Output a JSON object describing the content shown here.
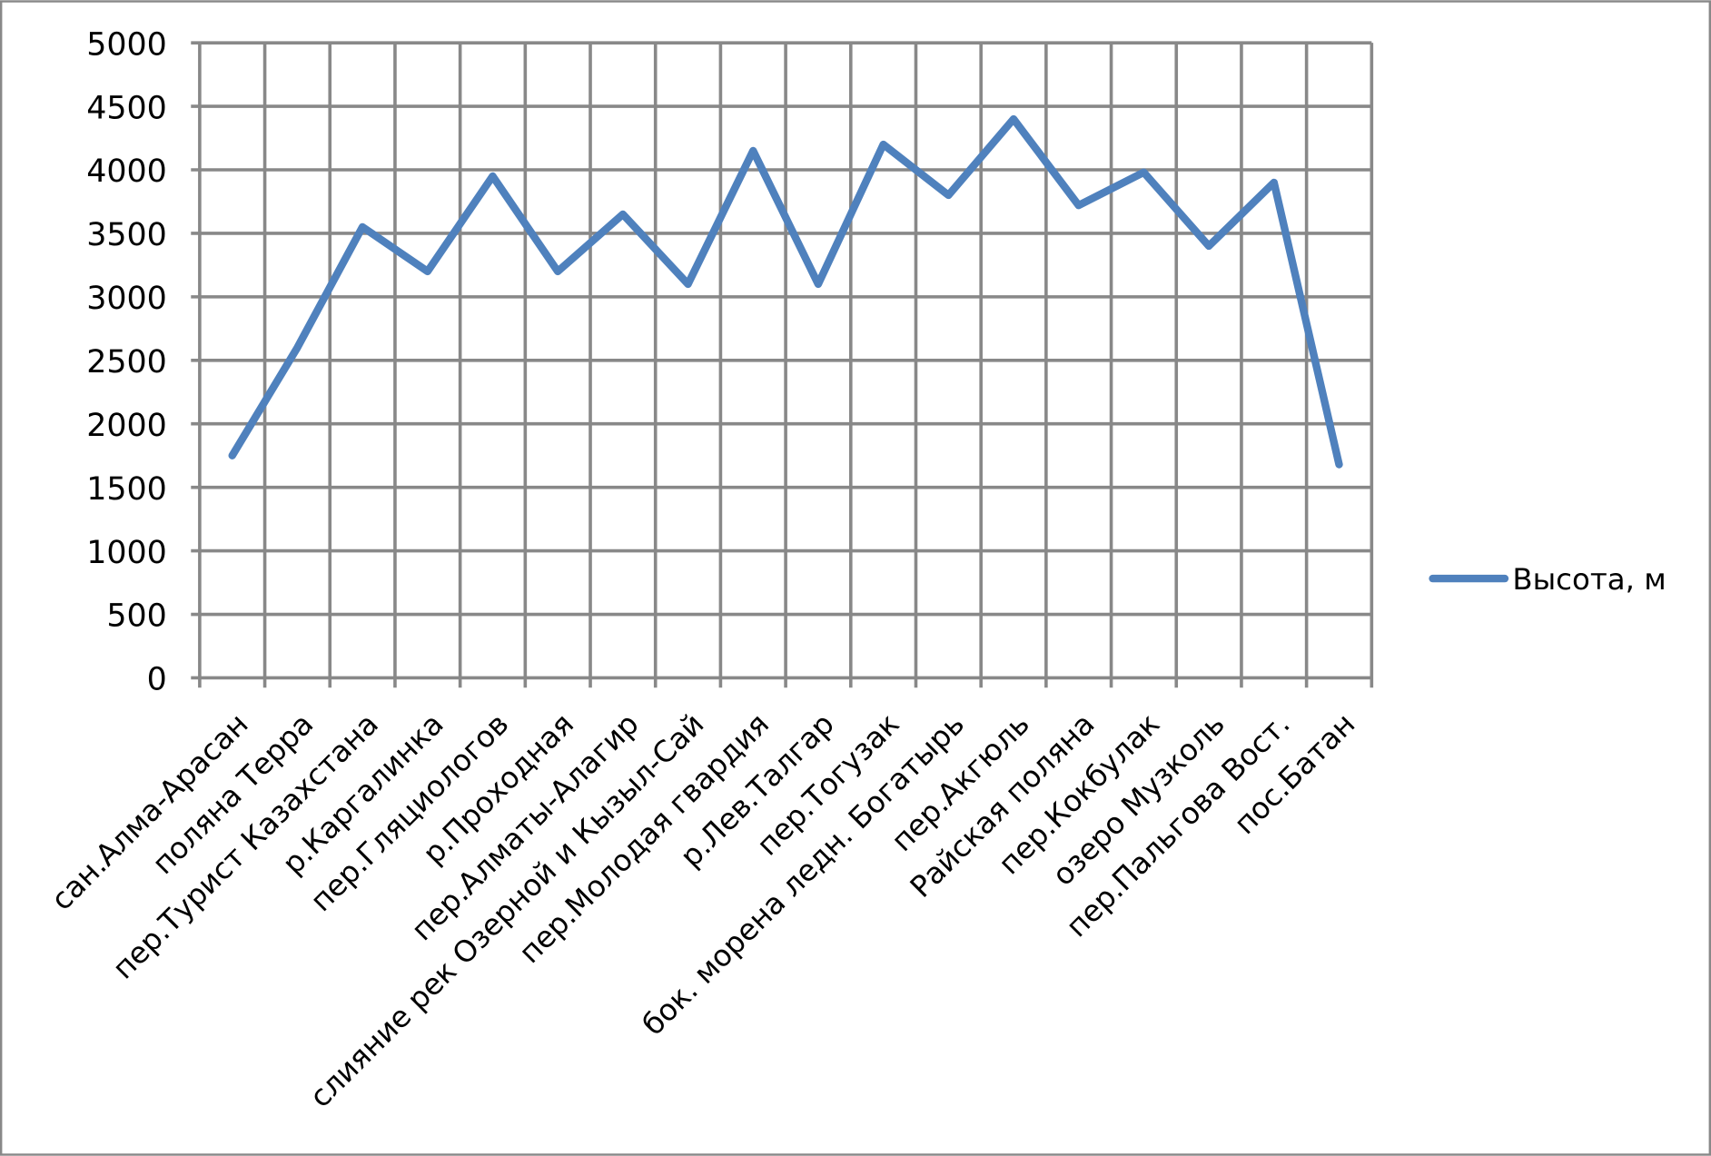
{
  "chart_data": {
    "type": "line",
    "categories": [
      "сан.Алма-Арасан",
      "поляна Терра",
      "пер.Турист Казахстана",
      "р.Каргалинка",
      "пер.Гляциологов",
      "р.Проходная",
      "пер.Алматы-Алагир",
      "слияние рек Озерной и Кызыл-Сай",
      "пер.Молодая гвардия",
      "р.Лев.Талгар",
      "пер.Тогузак",
      "бок. морена ледн. Богатырь",
      "пер.Акгюль",
      "Райская поляна",
      "пер.Кокбулак",
      "озеро Музколь",
      "пер.Пальгова Вост.",
      "пос.Батан"
    ],
    "series": [
      {
        "name": "Высота, м",
        "color": "#4f81bd",
        "values": [
          1750,
          2600,
          3550,
          3200,
          3950,
          3200,
          3650,
          3100,
          4150,
          3100,
          4200,
          3800,
          4400,
          3720,
          3980,
          3400,
          3900,
          1680
        ]
      }
    ],
    "ylim": [
      0,
      5000
    ],
    "yticks": [
      0,
      500,
      1000,
      1500,
      2000,
      2500,
      3000,
      3500,
      4000,
      4500,
      5000
    ],
    "grid": true,
    "legend": "right"
  }
}
